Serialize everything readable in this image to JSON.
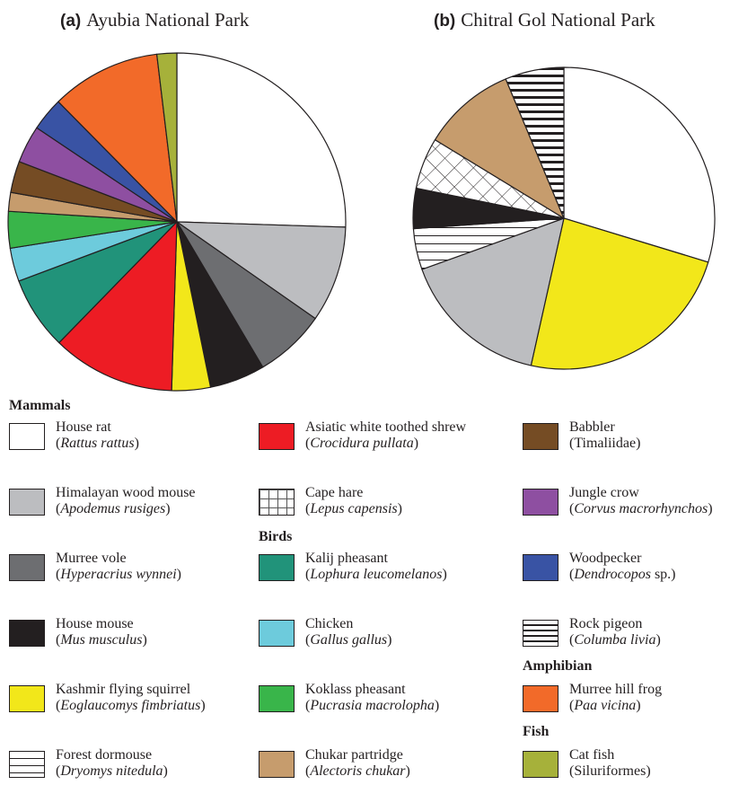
{
  "panels": [
    {
      "letter": "(a)",
      "name": "Ayubia National Park"
    },
    {
      "letter": "(b)",
      "name": "Chitral Gol National Park"
    }
  ],
  "chart_data": [
    {
      "type": "pie",
      "title": "Ayubia National Park",
      "slices": [
        {
          "label": "House rat",
          "value": 25.5
        },
        {
          "label": "Himalayan wood mouse",
          "value": 9.2
        },
        {
          "label": "Murree vole",
          "value": 6.8
        },
        {
          "label": "House mouse",
          "value": 5.3
        },
        {
          "label": "Kashmir flying squirrel",
          "value": 3.7
        },
        {
          "label": "Asiatic white toothed shrew",
          "value": 11.8
        },
        {
          "label": "Kalij pheasant",
          "value": 7.0
        },
        {
          "label": "Chicken",
          "value": 3.2
        },
        {
          "label": "Koklass pheasant",
          "value": 3.5
        },
        {
          "label": "Chukar partridge",
          "value": 1.8
        },
        {
          "label": "Babbler",
          "value": 3.0
        },
        {
          "label": "Jungle crow",
          "value": 3.6
        },
        {
          "label": "Woodpecker",
          "value": 3.2
        },
        {
          "label": "Murree hill frog",
          "value": 10.5
        },
        {
          "label": "Cat fish",
          "value": 1.9
        }
      ]
    },
    {
      "type": "pie",
      "title": "Chitral Gol National Park",
      "slices": [
        {
          "label": "House rat",
          "value": 29.7
        },
        {
          "label": "Kashmir flying squirrel",
          "value": 23.8
        },
        {
          "label": "Himalayan wood mouse",
          "value": 16.0
        },
        {
          "label": "Forest dormouse",
          "value": 4.4
        },
        {
          "label": "House mouse",
          "value": 4.3
        },
        {
          "label": "Cape hare",
          "value": 5.5
        },
        {
          "label": "Chukar partridge",
          "value": 10.0
        },
        {
          "label": "Rock pigeon",
          "value": 6.3
        }
      ]
    }
  ],
  "legend": {
    "groups": [
      {
        "label": "Mammals"
      },
      {
        "label": "Birds"
      },
      {
        "label": "Amphibian"
      },
      {
        "label": "Fish"
      }
    ],
    "items": [
      {
        "common": "House rat",
        "sci_open": "(",
        "sci": "Rattus rattus",
        "sci_close": ")",
        "color": "#ffffff",
        "pattern": "solid"
      },
      {
        "common": "Himalayan wood mouse",
        "sci_open": "(",
        "sci": "Apodemus rusiges",
        "sci_close": ")",
        "color": "#bcbdc0",
        "pattern": "solid"
      },
      {
        "common": "Murree vole",
        "sci_open": "(",
        "sci": "Hyperacrius wynnei",
        "sci_close": ")",
        "color": "#6d6e71",
        "pattern": "solid"
      },
      {
        "common": "House mouse",
        "sci_open": "(",
        "sci": "Mus musculus",
        "sci_close": ")",
        "color": "#231f20",
        "pattern": "solid"
      },
      {
        "common": "Kashmir flying squirrel",
        "sci_open": "(",
        "sci": "Eoglaucomys fimbriatus",
        "sci_close": ")",
        "color": "#f2e71a",
        "pattern": "solid"
      },
      {
        "common": "Forest dormouse",
        "sci_open": "(",
        "sci": "Dryomys nitedula",
        "sci_close": ")",
        "color": "#ffffff",
        "pattern": "hline"
      },
      {
        "common": "Asiatic white toothed shrew",
        "sci_open": "(",
        "sci": "Crocidura pullata",
        "sci_close": ")",
        "color": "#ed1c24",
        "pattern": "solid"
      },
      {
        "common": "Cape hare",
        "sci_open": "(",
        "sci": "Lepus capensis",
        "sci_close": ")",
        "color": "#ffffff",
        "pattern": "grid"
      },
      {
        "common": "Kalij pheasant",
        "sci_open": "(",
        "sci": "Lophura leucomelanos",
        "sci_close": ")",
        "color": "#21937a",
        "pattern": "solid"
      },
      {
        "common": "Chicken",
        "sci_open": "(",
        "sci": "Gallus gallus",
        "sci_close": ")",
        "color": "#6dcbdc",
        "pattern": "solid"
      },
      {
        "common": "Koklass pheasant",
        "sci_open": "(",
        "sci": "Pucrasia macrolopha",
        "sci_close": ")",
        "color": "#39b54a",
        "pattern": "solid"
      },
      {
        "common": "Chukar partridge",
        "sci_open": "(",
        "sci": "Alectoris chukar",
        "sci_close": ")",
        "color": "#c69c6d",
        "pattern": "solid"
      },
      {
        "common": "Babbler",
        "sci_open": "(Timaliidae)",
        "sci": "",
        "sci_close": "",
        "color": "#754c24",
        "pattern": "solid"
      },
      {
        "common": "Jungle crow",
        "sci_open": "(",
        "sci": "Corvus macrorhynchos",
        "sci_close": ")",
        "color": "#8e4fa1",
        "pattern": "solid"
      },
      {
        "common": "Woodpecker",
        "sci_open": "(",
        "sci": "Dendrocopos",
        "sci_close": " sp.)",
        "color": "#3953a4",
        "pattern": "solid"
      },
      {
        "common": "Rock pigeon",
        "sci_open": "(",
        "sci": "Columba livia",
        "sci_close": ")",
        "color": "#ffffff",
        "pattern": "hstripe"
      },
      {
        "common": "Murree hill frog",
        "sci_open": "(",
        "sci": "Paa vicina",
        "sci_close": ")",
        "color": "#f26a29",
        "pattern": "solid"
      },
      {
        "common": "Cat fish",
        "sci_open": "(Siluriformes)",
        "sci": "",
        "sci_close": "",
        "color": "#a6b13a",
        "pattern": "solid"
      }
    ]
  }
}
